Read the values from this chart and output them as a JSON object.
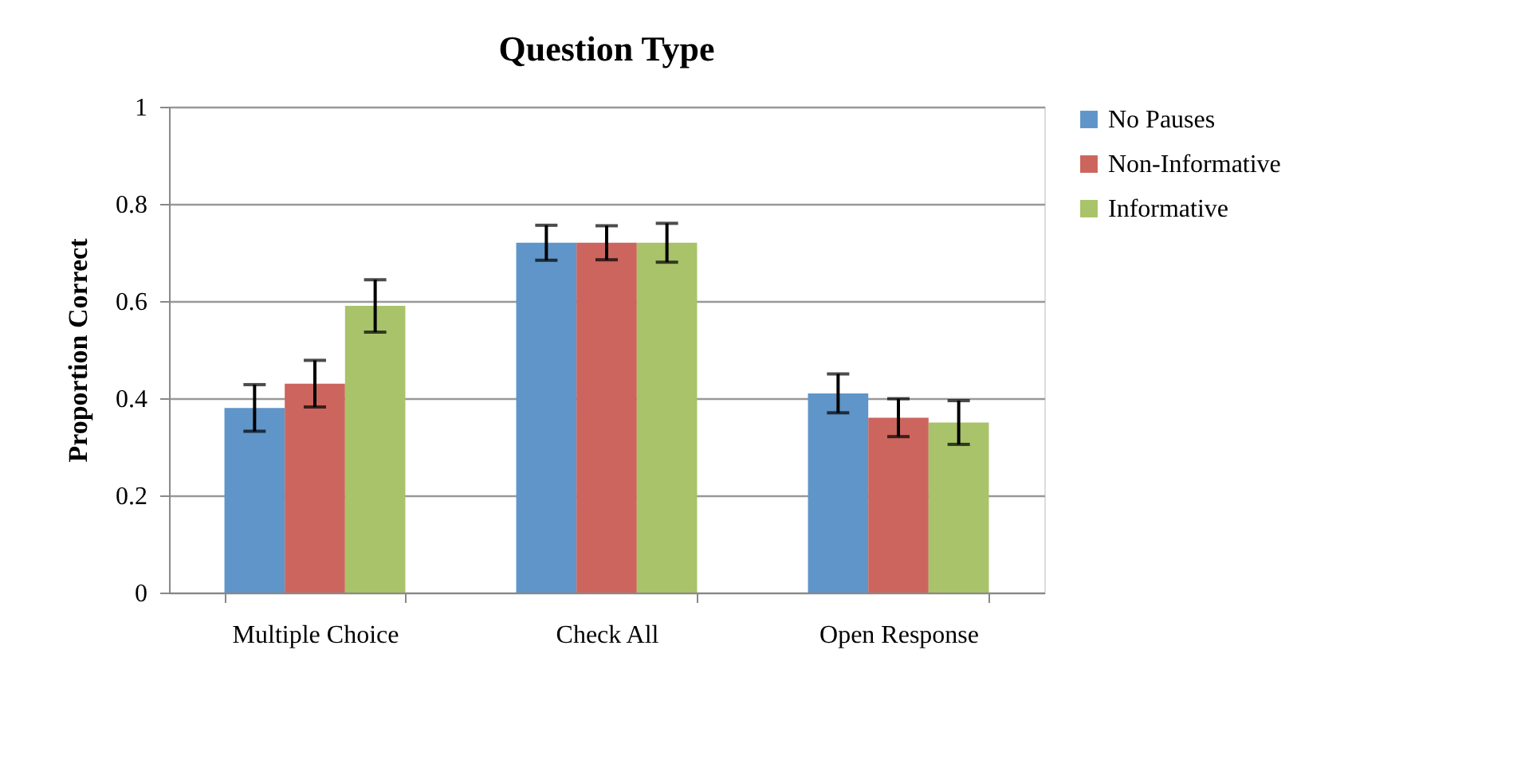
{
  "chart_data": {
    "type": "bar",
    "title": "Question Type",
    "ylabel": "Proportion Correct",
    "categories": [
      "Multiple Choice",
      "Check All",
      "Open Response"
    ],
    "series": [
      {
        "name": "No Pauses",
        "color": "#5f95c8",
        "values": [
          0.38,
          0.72,
          0.41
        ],
        "errors": [
          0.048,
          0.036,
          0.04
        ]
      },
      {
        "name": "Non-Informative",
        "color": "#cc655d",
        "values": [
          0.43,
          0.72,
          0.36
        ],
        "errors": [
          0.048,
          0.035,
          0.039
        ]
      },
      {
        "name": "Informative",
        "color": "#a8c369",
        "values": [
          0.59,
          0.72,
          0.35
        ],
        "errors": [
          0.054,
          0.04,
          0.045
        ]
      }
    ],
    "ylim": [
      0,
      1
    ],
    "yticks": [
      0,
      0.2,
      0.4,
      0.6,
      0.8,
      1
    ],
    "grid": "y",
    "legend": "right"
  }
}
